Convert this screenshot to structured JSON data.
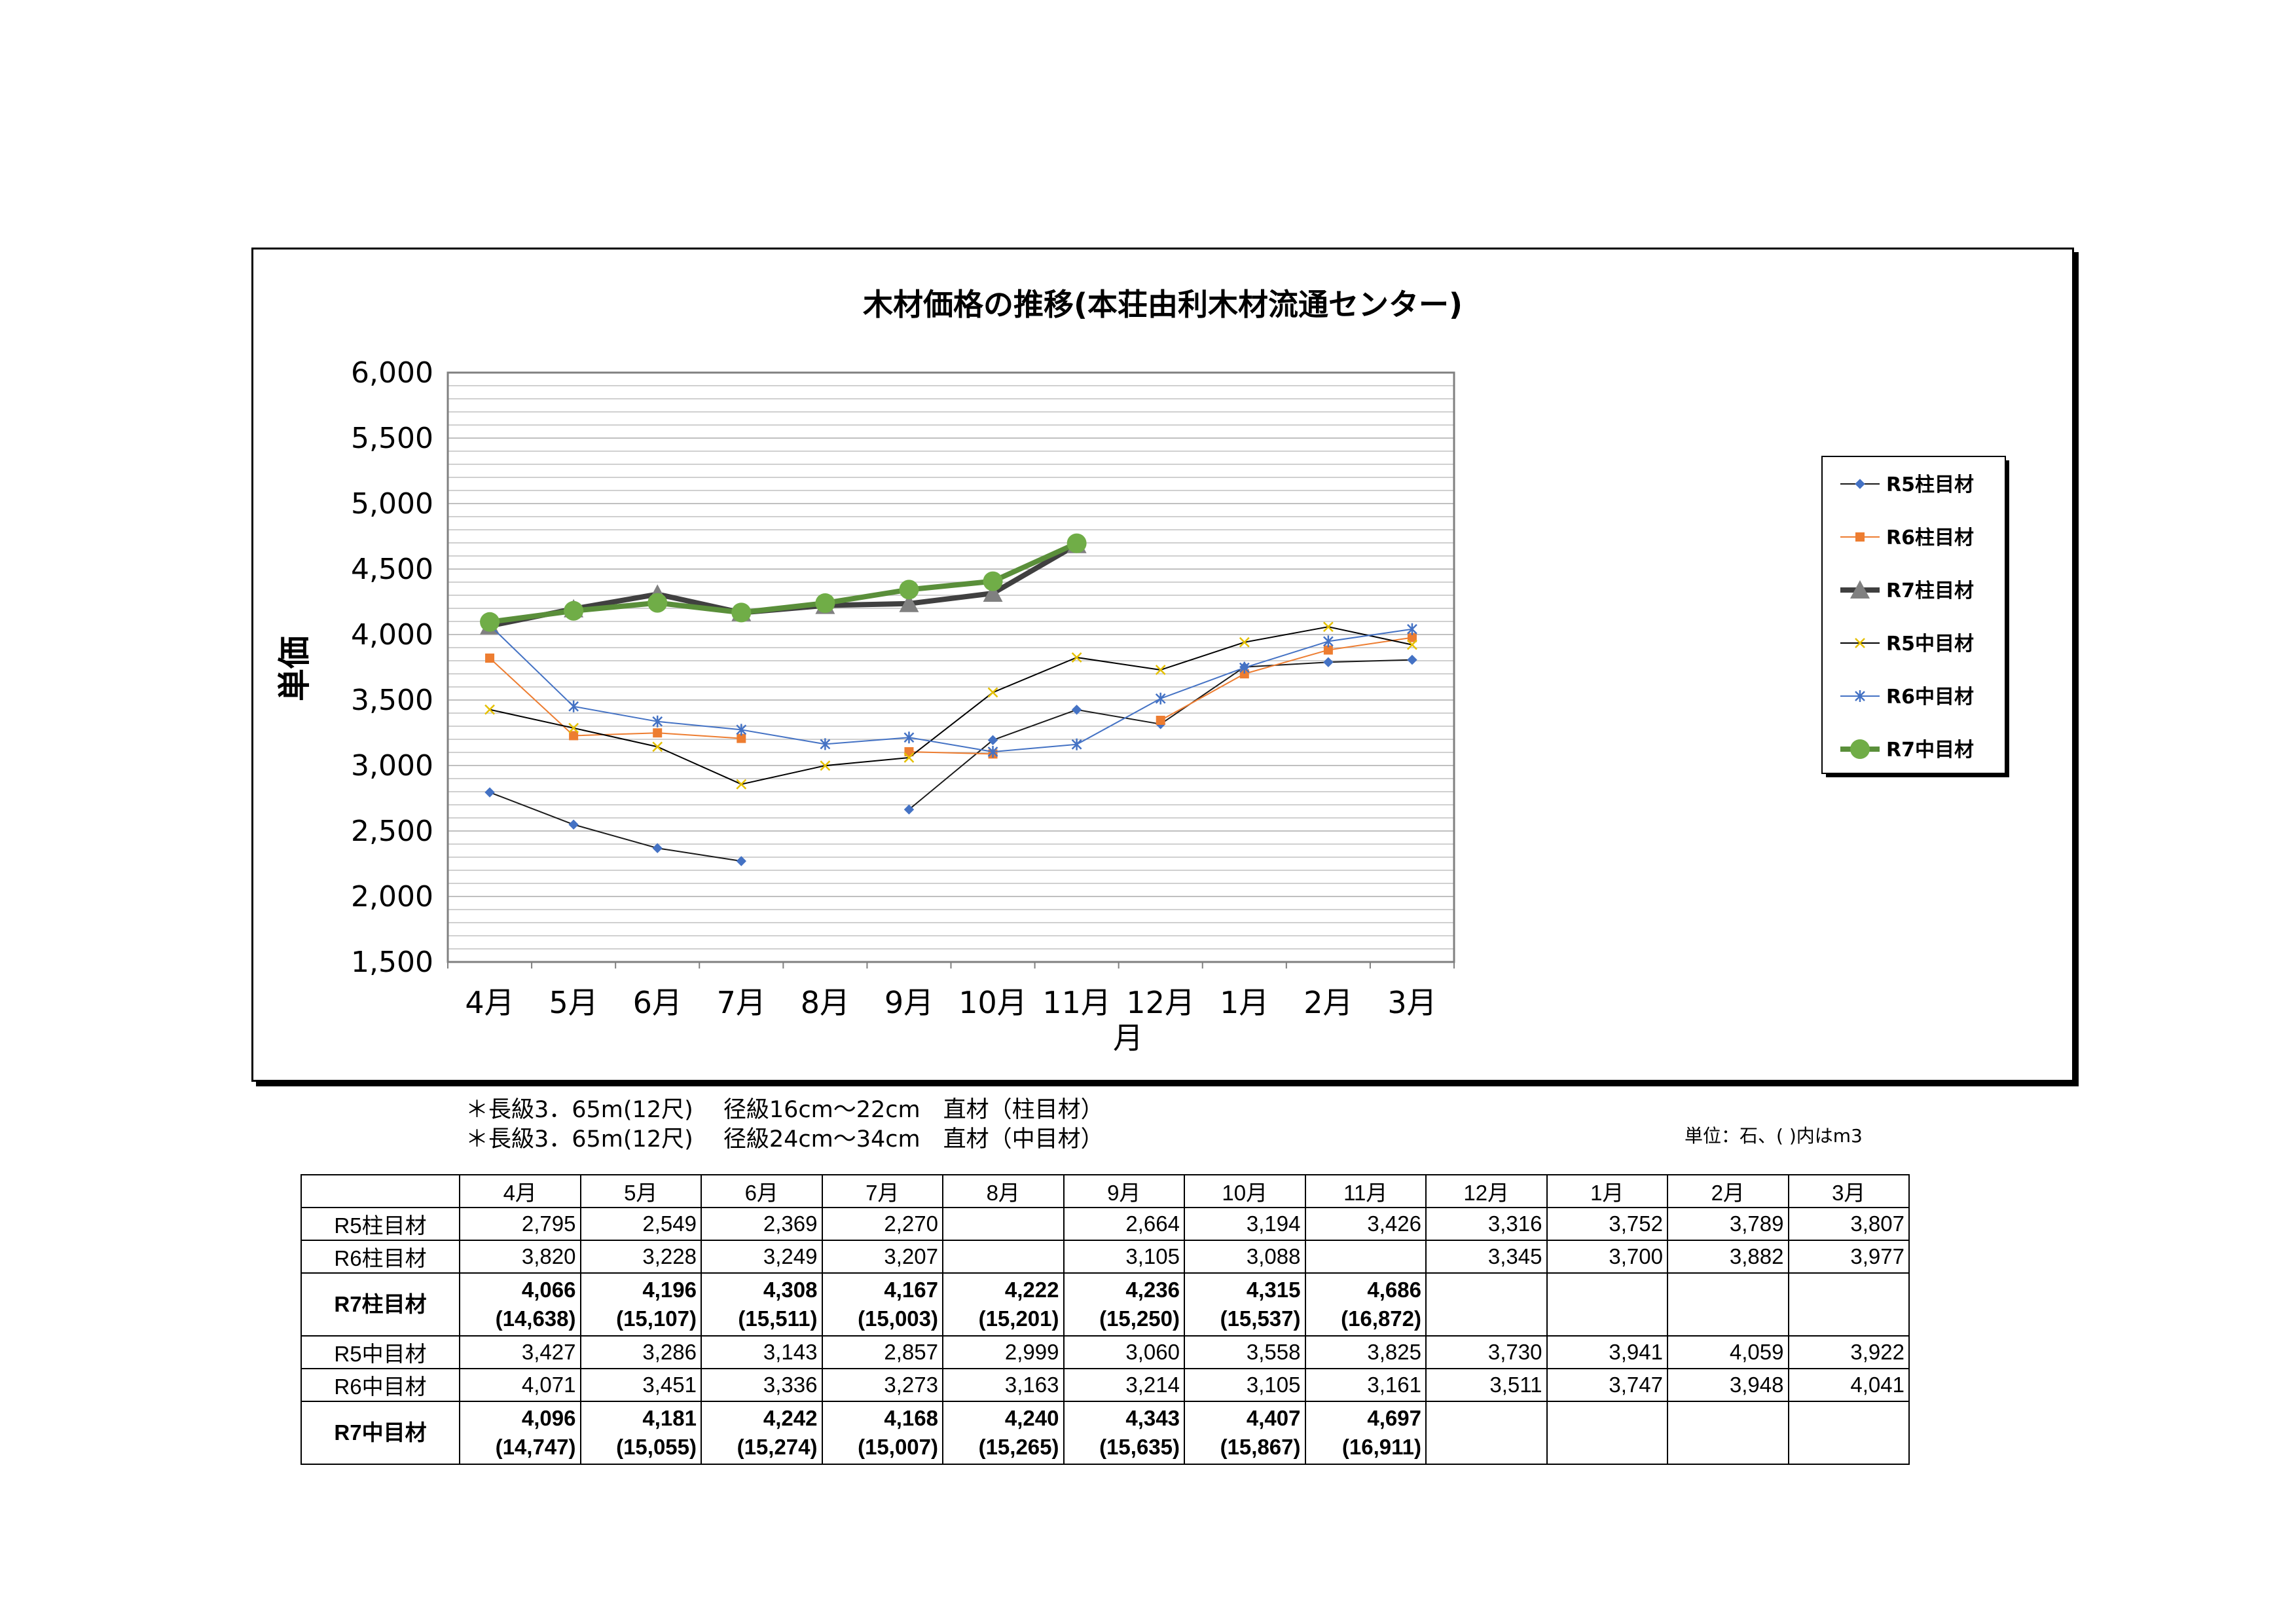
{
  "chart_data": {
    "type": "line",
    "title": "木材価格の推移(本荘由利木材流通センター)",
    "xlabel": "月",
    "ylabel": "単価",
    "ylim": [
      1500,
      6000
    ],
    "yticks": [
      "6,000",
      "5,500",
      "5,000",
      "4,500",
      "4,000",
      "3,500",
      "3,000",
      "2,500",
      "2,000",
      "1,500"
    ],
    "ytick_values": [
      6000,
      5500,
      5000,
      4500,
      4000,
      3500,
      3000,
      2500,
      2000,
      1500
    ],
    "categories": [
      "4月",
      "5月",
      "6月",
      "7月",
      "8月",
      "9月",
      "10月",
      "11月",
      "12月",
      "1月",
      "2月",
      "3月"
    ],
    "grid": true,
    "legend_position": "right",
    "series": [
      {
        "name": "R5柱目材",
        "color": "#4472C4",
        "line_color": "#1a1a1a",
        "marker": "diamond",
        "width": 2,
        "values": [
          2795,
          2549,
          2369,
          2270,
          null,
          2664,
          3194,
          3426,
          3316,
          3752,
          3789,
          3807
        ]
      },
      {
        "name": "R6柱目材",
        "color": "#ED7D31",
        "line_color": "#ED7D31",
        "marker": "square",
        "width": 2,
        "values": [
          3820,
          3228,
          3249,
          3207,
          null,
          3105,
          3088,
          null,
          3345,
          3700,
          3882,
          3977
        ]
      },
      {
        "name": "R7柱目材",
        "color": "#808080",
        "line_color": "#404040",
        "marker": "triangle",
        "width": 8,
        "values": [
          4066,
          4196,
          4308,
          4167,
          4222,
          4236,
          4315,
          4686,
          null,
          null,
          null,
          null
        ]
      },
      {
        "name": "R5中目材",
        "color": "#E5C000",
        "line_color": "#000000",
        "marker": "star",
        "width": 2,
        "values": [
          3427,
          3286,
          3143,
          2857,
          2999,
          3060,
          3558,
          3825,
          3730,
          3941,
          4059,
          3922
        ]
      },
      {
        "name": "R6中目材",
        "color": "#4472C4",
        "line_color": "#4472C4",
        "marker": "asterisk",
        "width": 2,
        "values": [
          4071,
          3451,
          3336,
          3273,
          3163,
          3214,
          3105,
          3161,
          3511,
          3747,
          3948,
          4041
        ]
      },
      {
        "name": "R7中目材",
        "color": "#70AD47",
        "line_color": "#5A8F3A",
        "marker": "circle",
        "width": 8,
        "values": [
          4096,
          4181,
          4242,
          4168,
          4240,
          4343,
          4407,
          4697,
          null,
          null,
          null,
          null
        ]
      }
    ]
  },
  "notes": {
    "line1": "＊長級3．65m(12尺)　 径級16cm～22cm　直材（柱目材）",
    "line2": "＊長級3．65m(12尺)　 径級24cm～34cm　直材（中目材）",
    "unit": "単位：石、( )内はm3"
  },
  "table": {
    "headers": [
      "4月",
      "5月",
      "6月",
      "7月",
      "8月",
      "9月",
      "10月",
      "11月",
      "12月",
      "1月",
      "2月",
      "3月"
    ],
    "rows": [
      {
        "label": "R5柱目材",
        "bold": false,
        "cells": [
          "2,795",
          "2,549",
          "2,369",
          "2,270",
          "",
          "2,664",
          "3,194",
          "3,426",
          "3,316",
          "3,752",
          "3,789",
          "3,807"
        ]
      },
      {
        "label": "R6柱目材",
        "bold": false,
        "cells": [
          "3,820",
          "3,228",
          "3,249",
          "3,207",
          "",
          "3,105",
          "3,088",
          "",
          "3,345",
          "3,700",
          "3,882",
          "3,977"
        ]
      },
      {
        "label": "R7柱目材",
        "bold": true,
        "cells": [
          "4,066",
          "4,196",
          "4,308",
          "4,167",
          "4,222",
          "4,236",
          "4,315",
          "4,686",
          "",
          "",
          "",
          ""
        ],
        "sub": [
          "(14,638)",
          "(15,107)",
          "(15,511)",
          "(15,003)",
          "(15,201)",
          "(15,250)",
          "(15,537)",
          "(16,872)",
          "",
          "",
          "",
          ""
        ]
      },
      {
        "label": "R5中目材",
        "bold": false,
        "cells": [
          "3,427",
          "3,286",
          "3,143",
          "2,857",
          "2,999",
          "3,060",
          "3,558",
          "3,825",
          "3,730",
          "3,941",
          "4,059",
          "3,922"
        ]
      },
      {
        "label": "R6中目材",
        "bold": false,
        "cells": [
          "4,071",
          "3,451",
          "3,336",
          "3,273",
          "3,163",
          "3,214",
          "3,105",
          "3,161",
          "3,511",
          "3,747",
          "3,948",
          "4,041"
        ]
      },
      {
        "label": "R7中目材",
        "bold": true,
        "cells": [
          "4,096",
          "4,181",
          "4,242",
          "4,168",
          "4,240",
          "4,343",
          "4,407",
          "4,697",
          "",
          "",
          "",
          ""
        ],
        "sub": [
          "(14,747)",
          "(15,055)",
          "(15,274)",
          "(15,007)",
          "(15,265)",
          "(15,635)",
          "(15,867)",
          "(16,911)",
          "",
          "",
          "",
          ""
        ]
      }
    ]
  }
}
